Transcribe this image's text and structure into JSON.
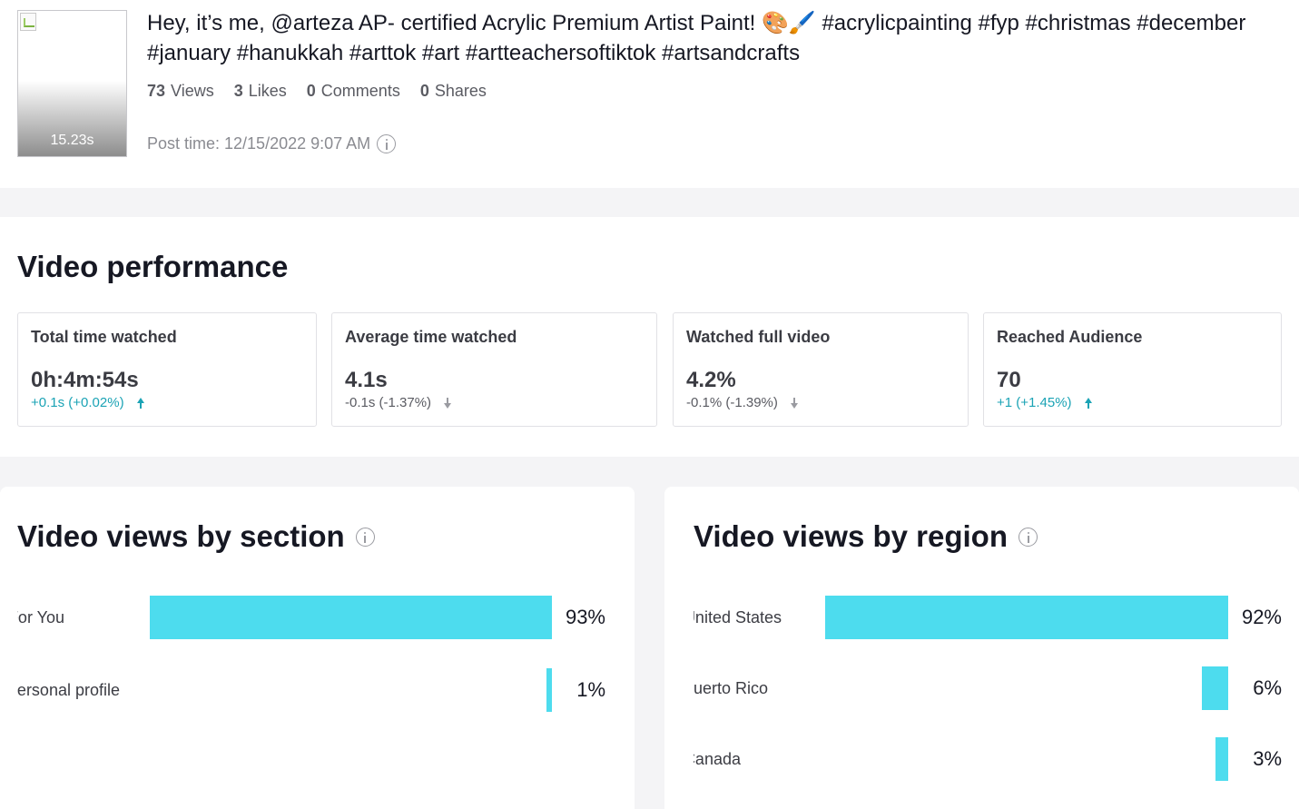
{
  "video": {
    "duration": "15.23s",
    "caption": "Hey, it’s me, @arteza AP- certified Acrylic Premium Artist Paint! 🎨🖌️ #acrylicpainting #fyp #christmas #december #january #hanukkah #arttok #art #artteachersoftiktok #artsandcrafts",
    "stats": [
      {
        "value": "73",
        "label": "Views"
      },
      {
        "value": "3",
        "label": "Likes"
      },
      {
        "value": "0",
        "label": "Comments"
      },
      {
        "value": "0",
        "label": "Shares"
      }
    ],
    "post_time": "Post time: 12/15/2022 9:07 AM"
  },
  "performance": {
    "title": "Video performance",
    "cards": [
      {
        "label": "Total time watched",
        "value": "0h:4m:54s",
        "change": "+0.1s (+0.02%)",
        "direction": "up"
      },
      {
        "label": "Average time watched",
        "value": "4.1s",
        "change": "-0.1s (-1.37%)",
        "direction": "down"
      },
      {
        "label": "Watched full video",
        "value": "4.2%",
        "change": "-0.1% (-1.39%)",
        "direction": "down"
      },
      {
        "label": "Reached Audience",
        "value": "70",
        "change": "+1 (+1.45%)",
        "direction": "up"
      }
    ]
  },
  "by_section": {
    "title": "Video views by section",
    "rows": [
      {
        "label": "For You",
        "percent": 93,
        "percent_label": "93%"
      },
      {
        "label": "Personal profile",
        "percent": 1,
        "percent_label": "1%"
      }
    ]
  },
  "by_region": {
    "title": "Video views by region",
    "rows": [
      {
        "label": "United States",
        "percent": 92,
        "percent_label": "92%"
      },
      {
        "label": "Puerto Rico",
        "percent": 6,
        "percent_label": "6%"
      },
      {
        "label": "Canada",
        "percent": 3,
        "percent_label": "3%"
      }
    ]
  },
  "colors": {
    "bar": "#4ddcee",
    "up": "#1ba3b5",
    "down": "#5a5b62"
  }
}
